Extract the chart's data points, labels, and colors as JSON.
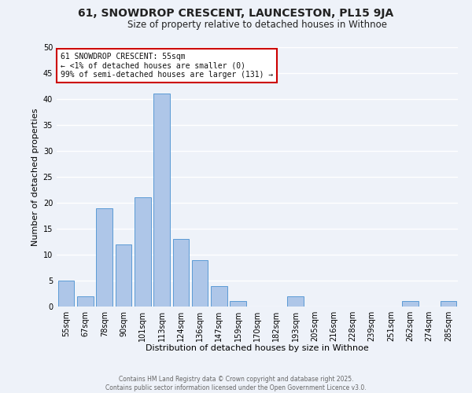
{
  "title": "61, SNOWDROP CRESCENT, LAUNCESTON, PL15 9JA",
  "subtitle": "Size of property relative to detached houses in Withnoe",
  "xlabel": "Distribution of detached houses by size in Withnoe",
  "ylabel": "Number of detached properties",
  "bar_labels": [
    "55sqm",
    "67sqm",
    "78sqm",
    "90sqm",
    "101sqm",
    "113sqm",
    "124sqm",
    "136sqm",
    "147sqm",
    "159sqm",
    "170sqm",
    "182sqm",
    "193sqm",
    "205sqm",
    "216sqm",
    "228sqm",
    "239sqm",
    "251sqm",
    "262sqm",
    "274sqm",
    "285sqm"
  ],
  "bar_values": [
    5,
    2,
    19,
    12,
    21,
    41,
    13,
    9,
    4,
    1,
    0,
    0,
    2,
    0,
    0,
    0,
    0,
    0,
    1,
    0,
    1
  ],
  "ylim": [
    0,
    50
  ],
  "yticks": [
    0,
    5,
    10,
    15,
    20,
    25,
    30,
    35,
    40,
    45,
    50
  ],
  "bar_color": "#aec6e8",
  "bar_edge_color": "#5b9bd5",
  "background_color": "#eef2f9",
  "grid_color": "#ffffff",
  "annotation_box_text": "61 SNOWDROP CRESCENT: 55sqm\n← <1% of detached houses are smaller (0)\n99% of semi-detached houses are larger (131) →",
  "annotation_box_color": "#ffffff",
  "annotation_box_edge_color": "#cc0000",
  "footer_line1": "Contains HM Land Registry data © Crown copyright and database right 2025.",
  "footer_line2": "Contains public sector information licensed under the Open Government Licence v3.0.",
  "title_fontsize": 10,
  "subtitle_fontsize": 8.5,
  "axis_label_fontsize": 8,
  "tick_fontsize": 7,
  "annotation_fontsize": 7,
  "footer_fontsize": 5.5
}
